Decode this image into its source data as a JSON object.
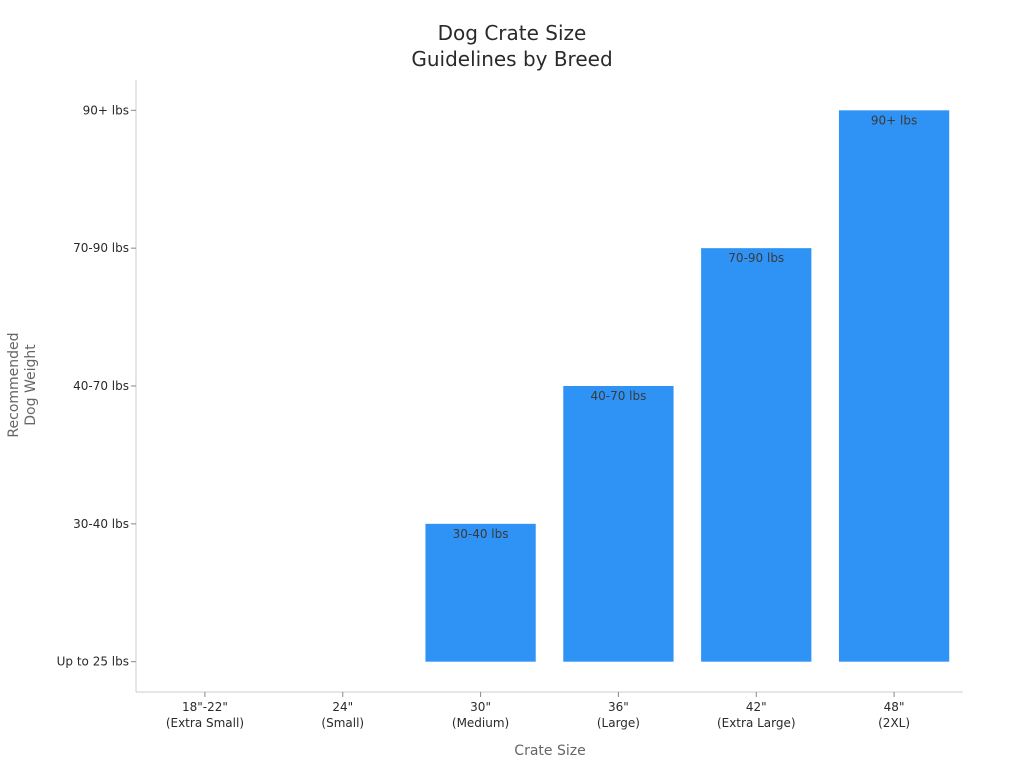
{
  "chart_data": {
    "type": "bar",
    "title_lines": [
      "Dog Crate Size",
      "Guidelines by Breed"
    ],
    "xlabel": "Crate Size",
    "ylabel_lines": [
      "Recommended",
      "Dog Weight"
    ],
    "categories": [
      [
        "18\"-22\"",
        "(Extra Small)"
      ],
      [
        "24\"",
        "(Small)"
      ],
      [
        "30\"",
        "(Medium)"
      ],
      [
        "36\"",
        "(Large)"
      ],
      [
        "42\"",
        "(Extra Large)"
      ],
      [
        "48\"",
        "(2XL)"
      ]
    ],
    "y_levels": [
      "Up to 25 lbs",
      "30-40 lbs",
      "40-70 lbs",
      "70-90 lbs",
      "90+ lbs"
    ],
    "values": [
      0,
      0,
      1,
      2,
      3,
      4
    ],
    "data_labels": [
      "",
      "",
      "30-40 lbs",
      "40-70 lbs",
      "70-90 lbs",
      "90+ lbs"
    ],
    "ylim": [
      -0.22,
      4.22
    ],
    "grid": false,
    "colors": {
      "bar": "#2f92f5",
      "axis": "#cccccc",
      "tick": "#888888"
    }
  }
}
